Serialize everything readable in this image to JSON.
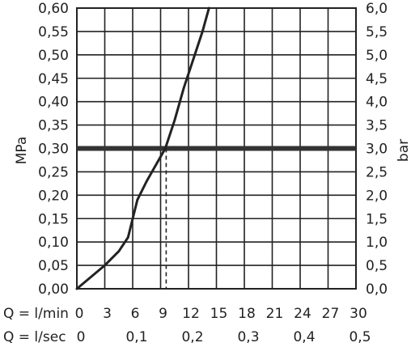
{
  "chart_data": {
    "type": "line",
    "y_left": {
      "label": "MPa",
      "ticks": [
        "0,00",
        "0,05",
        "0,10",
        "0,15",
        "0,20",
        "0,25",
        "0,30",
        "0,35",
        "0,40",
        "0,45",
        "0,50",
        "0,55",
        "0,60"
      ],
      "range": [
        0,
        0.6
      ]
    },
    "y_right": {
      "label": "bar",
      "ticks": [
        "0,0",
        "0,5",
        "1,0",
        "1,5",
        "2,0",
        "2,5",
        "3,0",
        "3,5",
        "4,0",
        "4,5",
        "5,0",
        "5,5",
        "6,0"
      ],
      "range": [
        0,
        6
      ]
    },
    "x_primary": {
      "label": "Q = l/min",
      "ticks": [
        "0",
        "3",
        "6",
        "9",
        "12",
        "15",
        "18",
        "21",
        "24",
        "27",
        "30"
      ],
      "range": [
        0,
        30
      ]
    },
    "x_secondary": {
      "label": "Q = l/sec",
      "ticks": [
        "0",
        "0,1",
        "0,2",
        "0,3",
        "0,4",
        "0,5"
      ]
    },
    "grid": true,
    "series": [
      {
        "x": [
          0,
          1.5,
          3,
          4.5,
          5.5,
          6.0,
          6.5,
          7.5,
          8.5,
          9.5,
          10.5,
          11.5,
          12.5,
          13.5,
          14.2
        ],
        "y": [
          0.0,
          0.025,
          0.05,
          0.08,
          0.11,
          0.15,
          0.19,
          0.23,
          0.265,
          0.3,
          0.36,
          0.43,
          0.49,
          0.55,
          0.6
        ]
      }
    ],
    "reference_line": {
      "y": 0.3,
      "x_intersect": 9.6
    },
    "colors": {
      "line": "#222222",
      "grid": "#222222",
      "axis": "#222222"
    }
  }
}
